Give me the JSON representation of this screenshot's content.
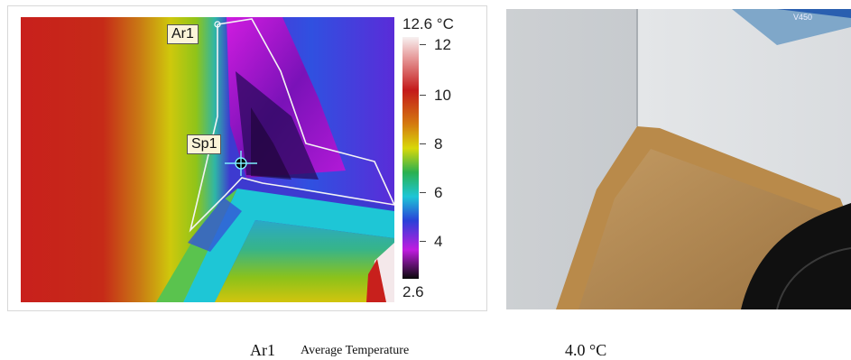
{
  "thermal": {
    "scale_max": "12.6 °C",
    "scale_min": "2.6",
    "ticks": [
      "12",
      "10",
      "8",
      "6",
      "4"
    ],
    "markers": {
      "area": "Ar1",
      "spot": "Sp1"
    }
  },
  "caption": {
    "measure_name": "Ar1",
    "measure_label": "Average Temperature",
    "value": "4.0 °C"
  },
  "photo": {
    "box_text": "V450"
  }
}
